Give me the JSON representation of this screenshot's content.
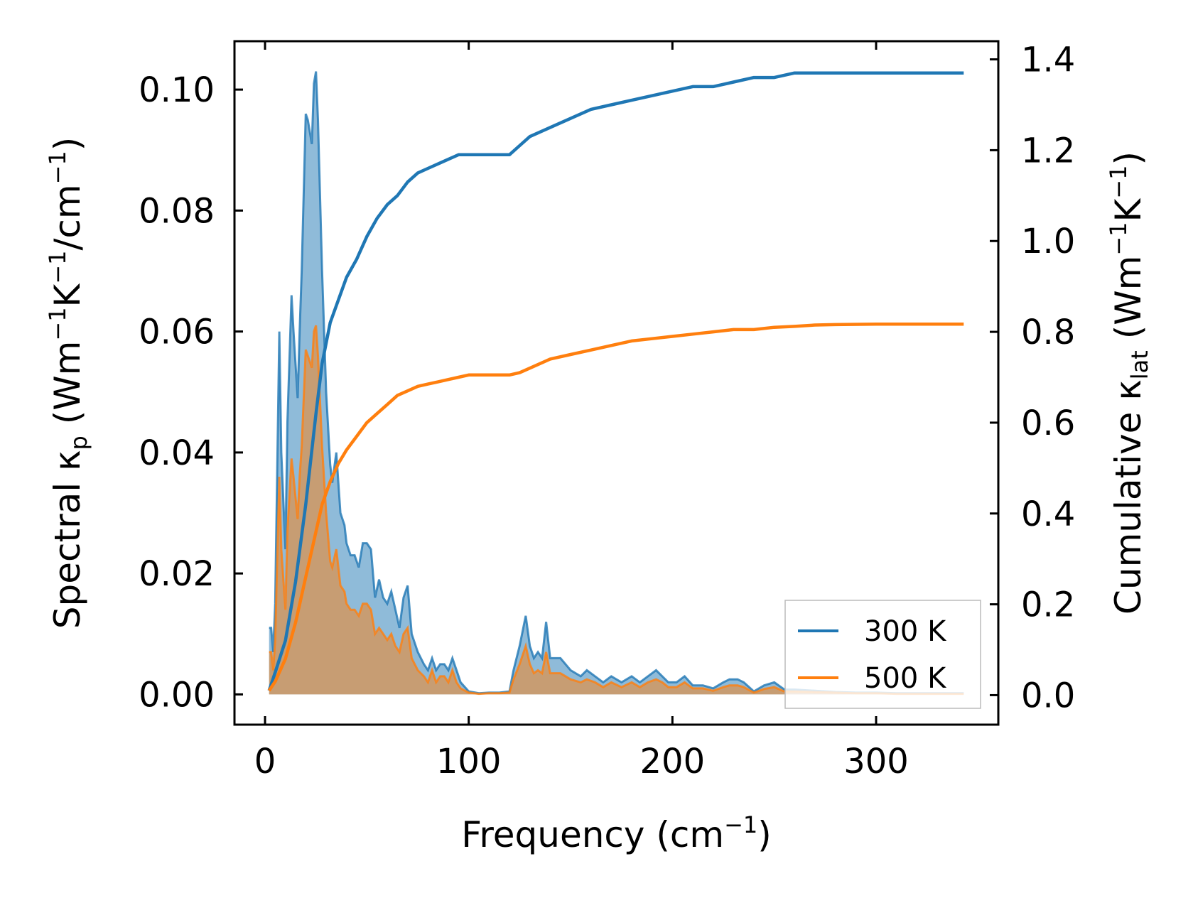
{
  "chart_data": {
    "type": "area+line",
    "xlabel_main": "Frequency (cm",
    "xlabel_sup": "−1",
    "xlabel_end": ")",
    "ylabel_left": {
      "prefix": "Spectral κ",
      "sub": "p",
      "middle": " (Wm",
      "sup1": "−1",
      "k": "K",
      "sup2": "−1",
      "slash": "/cm",
      "sup3": "−1",
      "end": ")"
    },
    "ylabel_right": {
      "prefix": "Cumulative κ",
      "sub": "lat",
      "middle": " (Wm",
      "sup1": "−1",
      "k": "K",
      "sup2": "−1",
      "end": ")"
    },
    "xlim": [
      -15,
      360
    ],
    "ylim_left": [
      -0.005,
      0.108
    ],
    "ylim_right": [
      -0.065,
      1.44
    ],
    "xticks": [
      0,
      100,
      200,
      300
    ],
    "xtick_labels": [
      "0",
      "100",
      "200",
      "300"
    ],
    "yticks_left": [
      0.0,
      0.02,
      0.04,
      0.06,
      0.08,
      0.1
    ],
    "ytick_labels_left": [
      "0.00",
      "0.02",
      "0.04",
      "0.06",
      "0.08",
      "0.10"
    ],
    "yticks_right": [
      0.0,
      0.2,
      0.4,
      0.6,
      0.8,
      1.0,
      1.2,
      1.4
    ],
    "ytick_labels_right": [
      "0.0",
      "0.2",
      "0.4",
      "0.6",
      "0.8",
      "1.0",
      "1.2",
      "1.4"
    ],
    "legend": {
      "position": "lower-right",
      "entries": [
        "300 K",
        "500 K"
      ]
    },
    "series": [
      {
        "name": "300 K",
        "color": "#1f77b4",
        "spectral": {
          "x": [
            2,
            3,
            4,
            5,
            7,
            8,
            10,
            11,
            13,
            14,
            16,
            17,
            18,
            20,
            21,
            23,
            24,
            25,
            26,
            28,
            30,
            32,
            33,
            35,
            37,
            39,
            40,
            42,
            44,
            46,
            48,
            50,
            52,
            54,
            56,
            58,
            60,
            62,
            64,
            66,
            68,
            70,
            72,
            75,
            78,
            80,
            82,
            84,
            86,
            88,
            90,
            92,
            94,
            96,
            100,
            105,
            110,
            115,
            120,
            122,
            125,
            128,
            130,
            132,
            134,
            136,
            138,
            140,
            142,
            145,
            150,
            155,
            158,
            162,
            166,
            170,
            175,
            180,
            184,
            188,
            192,
            195,
            198,
            202,
            206,
            210,
            215,
            220,
            225,
            228,
            232,
            235,
            240,
            245,
            250,
            255,
            260,
            270,
            280,
            290,
            300,
            310,
            320,
            330,
            343
          ],
          "y": [
            0.011,
            0.011,
            0.007,
            0.015,
            0.06,
            0.04,
            0.024,
            0.045,
            0.066,
            0.06,
            0.049,
            0.06,
            0.07,
            0.096,
            0.095,
            0.091,
            0.101,
            0.103,
            0.095,
            0.07,
            0.05,
            0.038,
            0.035,
            0.04,
            0.03,
            0.028,
            0.025,
            0.023,
            0.023,
            0.021,
            0.025,
            0.025,
            0.024,
            0.016,
            0.019,
            0.016,
            0.015,
            0.017,
            0.014,
            0.011,
            0.016,
            0.018,
            0.01,
            0.007,
            0.005,
            0.004,
            0.006,
            0.004,
            0.005,
            0.005,
            0.004,
            0.006,
            0.004,
            0.002,
            0.0005,
            0.0002,
            0.0003,
            0.0003,
            0.0005,
            0.004,
            0.008,
            0.013,
            0.008,
            0.006,
            0.007,
            0.006,
            0.012,
            0.006,
            0.006,
            0.006,
            0.004,
            0.003,
            0.004,
            0.003,
            0.002,
            0.003,
            0.002,
            0.003,
            0.002,
            0.003,
            0.004,
            0.003,
            0.002,
            0.002,
            0.003,
            0.0015,
            0.0015,
            0.001,
            0.002,
            0.0025,
            0.0025,
            0.002,
            0.0005,
            0.0015,
            0.002,
            0.0008,
            0.0008,
            0.0006,
            0.0004,
            0.0003,
            0.0003,
            0.0002,
            0.0002,
            0.0002,
            0.0002
          ]
        },
        "cumulative": {
          "x": [
            2,
            5,
            10,
            15,
            20,
            25,
            28,
            32,
            36,
            40,
            45,
            50,
            55,
            60,
            65,
            70,
            75,
            80,
            85,
            90,
            95,
            100,
            110,
            120,
            125,
            130,
            135,
            140,
            150,
            160,
            170,
            180,
            190,
            200,
            210,
            220,
            230,
            240,
            250,
            260,
            270,
            280,
            300,
            320,
            343
          ],
          "y": [
            0.01,
            0.05,
            0.12,
            0.25,
            0.42,
            0.62,
            0.73,
            0.82,
            0.87,
            0.92,
            0.96,
            1.01,
            1.05,
            1.08,
            1.1,
            1.13,
            1.15,
            1.16,
            1.17,
            1.18,
            1.19,
            1.19,
            1.19,
            1.19,
            1.21,
            1.23,
            1.24,
            1.25,
            1.27,
            1.29,
            1.3,
            1.31,
            1.32,
            1.33,
            1.34,
            1.34,
            1.35,
            1.36,
            1.36,
            1.37,
            1.37,
            1.37,
            1.37,
            1.37,
            1.37
          ]
        }
      },
      {
        "name": "500 K",
        "color": "#ff7f0e",
        "spectral": {
          "x": [
            2,
            3,
            4,
            5,
            7,
            8,
            10,
            11,
            13,
            14,
            16,
            17,
            18,
            20,
            21,
            23,
            24,
            25,
            26,
            28,
            30,
            32,
            33,
            35,
            37,
            39,
            40,
            42,
            44,
            46,
            48,
            50,
            52,
            54,
            56,
            58,
            60,
            62,
            64,
            66,
            68,
            70,
            72,
            75,
            78,
            80,
            82,
            84,
            86,
            88,
            90,
            92,
            94,
            96,
            100,
            105,
            110,
            115,
            120,
            122,
            125,
            128,
            130,
            132,
            134,
            136,
            138,
            140,
            142,
            145,
            150,
            155,
            158,
            162,
            166,
            170,
            175,
            180,
            184,
            188,
            192,
            195,
            198,
            202,
            206,
            210,
            215,
            220,
            225,
            228,
            232,
            235,
            240,
            245,
            250,
            255,
            260,
            270,
            280,
            290,
            300,
            310,
            320,
            330,
            343
          ],
          "y": [
            0.007,
            0.007,
            0.004,
            0.009,
            0.036,
            0.024,
            0.014,
            0.027,
            0.039,
            0.036,
            0.029,
            0.036,
            0.041,
            0.057,
            0.056,
            0.054,
            0.06,
            0.061,
            0.056,
            0.041,
            0.03,
            0.022,
            0.021,
            0.024,
            0.018,
            0.017,
            0.015,
            0.014,
            0.014,
            0.013,
            0.015,
            0.015,
            0.014,
            0.01,
            0.011,
            0.01,
            0.009,
            0.01,
            0.008,
            0.007,
            0.01,
            0.011,
            0.006,
            0.004,
            0.003,
            0.002,
            0.004,
            0.002,
            0.003,
            0.003,
            0.002,
            0.004,
            0.002,
            0.001,
            0.0003,
            0.0001,
            0.0002,
            0.0002,
            0.0003,
            0.0025,
            0.005,
            0.008,
            0.005,
            0.0035,
            0.004,
            0.0035,
            0.007,
            0.0035,
            0.0035,
            0.0035,
            0.0025,
            0.002,
            0.0025,
            0.002,
            0.0012,
            0.002,
            0.0012,
            0.002,
            0.0012,
            0.002,
            0.0025,
            0.002,
            0.0012,
            0.0012,
            0.002,
            0.001,
            0.001,
            0.0006,
            0.0012,
            0.0015,
            0.0015,
            0.0012,
            0.0003,
            0.0009,
            0.0012,
            0.0005,
            0.0005,
            0.0004,
            0.0003,
            0.0002,
            0.0002,
            0.0001,
            0.0001,
            0.0001,
            0.0001
          ]
        },
        "cumulative": {
          "x": [
            2,
            5,
            10,
            15,
            20,
            25,
            28,
            32,
            36,
            40,
            45,
            50,
            55,
            60,
            65,
            70,
            75,
            80,
            85,
            90,
            95,
            100,
            110,
            120,
            125,
            130,
            135,
            140,
            150,
            160,
            170,
            180,
            190,
            200,
            210,
            220,
            230,
            240,
            250,
            260,
            270,
            280,
            300,
            320,
            343
          ],
          "y": [
            0.01,
            0.03,
            0.08,
            0.16,
            0.26,
            0.36,
            0.42,
            0.47,
            0.51,
            0.54,
            0.57,
            0.6,
            0.62,
            0.64,
            0.66,
            0.67,
            0.68,
            0.685,
            0.69,
            0.695,
            0.7,
            0.705,
            0.705,
            0.705,
            0.71,
            0.72,
            0.73,
            0.74,
            0.75,
            0.76,
            0.77,
            0.78,
            0.785,
            0.79,
            0.795,
            0.8,
            0.805,
            0.805,
            0.81,
            0.812,
            0.815,
            0.816,
            0.817,
            0.817,
            0.817
          ]
        }
      }
    ]
  }
}
